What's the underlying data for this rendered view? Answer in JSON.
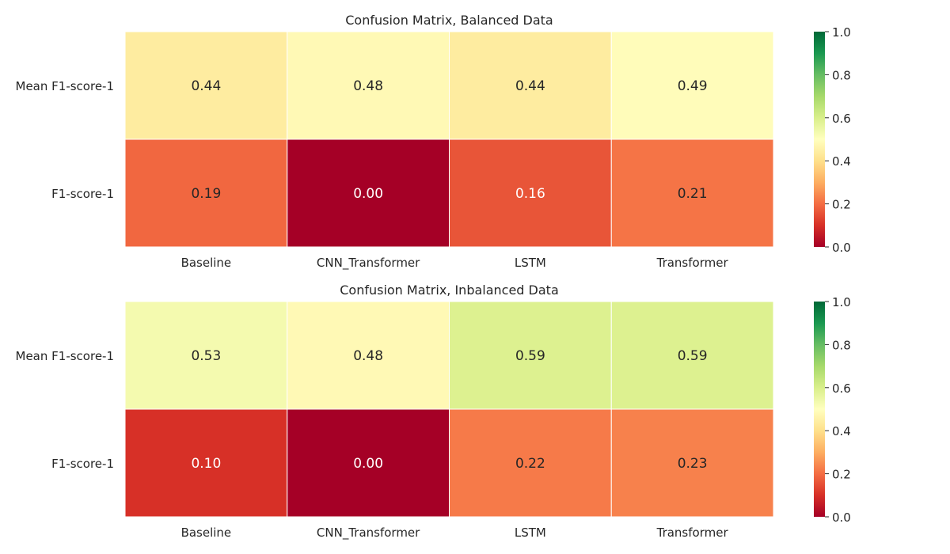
{
  "chart_data": [
    {
      "type": "heatmap",
      "title": "Confusion Matrix, Balanced Data",
      "x_categories": [
        "Baseline",
        "CNN_Transformer",
        "LSTM",
        "Transformer"
      ],
      "y_categories": [
        "Mean F1-score-1",
        "F1-score-1"
      ],
      "values": [
        [
          0.44,
          0.48,
          0.44,
          0.49
        ],
        [
          0.19,
          0.0,
          0.16,
          0.21
        ]
      ],
      "cell_labels": [
        [
          "0.44",
          "0.48",
          "0.44",
          "0.49"
        ],
        [
          "0.19",
          "0.00",
          "0.16",
          "0.21"
        ]
      ],
      "colorbar": {
        "range": [
          0,
          1
        ],
        "ticks": [
          "0.0",
          "0.2",
          "0.4",
          "0.6",
          "0.8",
          "1.0"
        ],
        "colormap": "RdYlGn"
      }
    },
    {
      "type": "heatmap",
      "title": "Confusion Matrix, Inbalanced Data",
      "x_categories": [
        "Baseline",
        "CNN_Transformer",
        "LSTM",
        "Transformer"
      ],
      "y_categories": [
        "Mean F1-score-1",
        "F1-score-1"
      ],
      "values": [
        [
          0.53,
          0.48,
          0.59,
          0.59
        ],
        [
          0.1,
          0.0,
          0.22,
          0.23
        ]
      ],
      "cell_labels": [
        [
          "0.53",
          "0.48",
          "0.59",
          "0.59"
        ],
        [
          "0.10",
          "0.00",
          "0.22",
          "0.23"
        ]
      ],
      "colorbar": {
        "range": [
          0,
          1
        ],
        "ticks": [
          "0.0",
          "0.2",
          "0.4",
          "0.6",
          "0.8",
          "1.0"
        ],
        "colormap": "RdYlGn"
      }
    }
  ],
  "colormap_stops": [
    "#a50026",
    "#d73027",
    "#f46d43",
    "#fdae61",
    "#fee08b",
    "#ffffbf",
    "#d9ef8b",
    "#a6d96a",
    "#66bd63",
    "#1a9850",
    "#006837"
  ]
}
